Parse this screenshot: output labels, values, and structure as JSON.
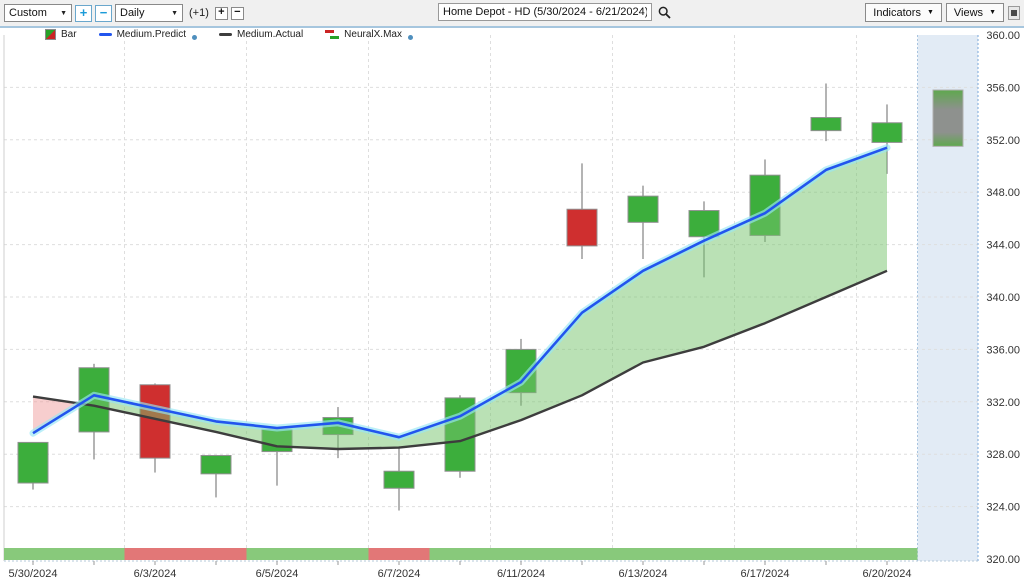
{
  "toolbar": {
    "range_select": "Custom",
    "period_select": "Daily",
    "zoom_in": "+",
    "zoom_out": "−",
    "offset_label": "(+1)",
    "bar_plus": "+",
    "bar_minus": "−",
    "symbol_title": "Home Depot - HD (5/30/2024 - 6/21/2024)",
    "indicators_button": "Indicators",
    "views_button": "Views"
  },
  "legend": {
    "items": [
      {
        "label": "Bar",
        "icon": "candle-bar-icon"
      },
      {
        "label": "Medium.Predict",
        "icon": "predict-line-icon",
        "has_dot": true
      },
      {
        "label": "Medium.Actual",
        "icon": "actual-line-icon"
      },
      {
        "label": "NeuralX.Max",
        "icon": "neuralx-icon",
        "has_dot": true
      }
    ]
  },
  "chart_data": {
    "type": "candlestick",
    "symbol": "Home Depot - HD",
    "date_range": "5/30/2024 - 6/21/2024",
    "y_axis": {
      "min": 320,
      "max": 360,
      "step": 4,
      "tick_labels": [
        "360.00",
        "356.00",
        "352.00",
        "348.00",
        "344.00",
        "340.00",
        "336.00",
        "332.00",
        "328.00",
        "324.00",
        "320.00"
      ]
    },
    "x_labels": [
      {
        "index": 0,
        "label": "5/30/2024"
      },
      {
        "index": 2,
        "label": "6/3/2024"
      },
      {
        "index": 4,
        "label": "6/5/2024"
      },
      {
        "index": 6,
        "label": "6/7/2024"
      },
      {
        "index": 8,
        "label": "6/11/2024"
      },
      {
        "index": 10,
        "label": "6/13/2024"
      },
      {
        "index": 12,
        "label": "6/17/2024"
      },
      {
        "index": 14,
        "label": "6/20/2024"
      }
    ],
    "candles": [
      {
        "open": 325.8,
        "high": 328.9,
        "low": 325.3,
        "close": 328.9,
        "dir": "up"
      },
      {
        "open": 329.7,
        "high": 334.9,
        "low": 327.6,
        "close": 334.6,
        "dir": "up"
      },
      {
        "open": 333.3,
        "high": 333.4,
        "low": 326.6,
        "close": 327.7,
        "dir": "down"
      },
      {
        "open": 326.5,
        "high": 327.9,
        "low": 324.7,
        "close": 327.9,
        "dir": "up"
      },
      {
        "open": 328.2,
        "high": 329.9,
        "low": 325.6,
        "close": 329.9,
        "dir": "up"
      },
      {
        "open": 329.5,
        "high": 331.6,
        "low": 327.7,
        "close": 330.8,
        "dir": "up"
      },
      {
        "open": 325.4,
        "high": 328.6,
        "low": 323.7,
        "close": 326.7,
        "dir": "up"
      },
      {
        "open": 326.7,
        "high": 332.5,
        "low": 326.2,
        "close": 332.3,
        "dir": "up"
      },
      {
        "open": 332.7,
        "high": 336.8,
        "low": 331.7,
        "close": 336.0,
        "dir": "up"
      },
      {
        "open": 346.7,
        "high": 350.2,
        "low": 342.9,
        "close": 343.9,
        "dir": "down"
      },
      {
        "open": 345.7,
        "high": 348.5,
        "low": 342.9,
        "close": 347.7,
        "dir": "up"
      },
      {
        "open": 344.6,
        "high": 347.3,
        "low": 341.5,
        "close": 346.6,
        "dir": "up"
      },
      {
        "open": 344.7,
        "high": 350.5,
        "low": 344.2,
        "close": 349.3,
        "dir": "up"
      },
      {
        "open": 352.7,
        "high": 356.3,
        "low": 351.9,
        "close": 353.7,
        "dir": "up"
      },
      {
        "open": 351.8,
        "high": 354.7,
        "low": 349.4,
        "close": 353.3,
        "dir": "up"
      }
    ],
    "series": [
      {
        "name": "Medium.Predict",
        "color": "#2255ee",
        "values": [
          329.6,
          332.5,
          331.5,
          330.5,
          330.0,
          330.4,
          329.3,
          330.9,
          333.5,
          338.8,
          342.0,
          344.3,
          346.4,
          349.7,
          351.4
        ]
      },
      {
        "name": "Medium.Actual",
        "color": "#3d3d3d",
        "values": [
          332.4,
          331.7,
          330.7,
          329.7,
          328.6,
          328.4,
          328.5,
          329.0,
          330.6,
          332.5,
          335.0,
          336.2,
          338.0,
          340.0,
          342.0
        ]
      }
    ],
    "forecast_bar": {
      "high": 355.8,
      "low": 351.5
    },
    "signal_strip": [
      {
        "from": 0,
        "to": 1,
        "signal": "up"
      },
      {
        "from": 2,
        "to": 3,
        "signal": "down"
      },
      {
        "from": 4,
        "to": 5,
        "signal": "up"
      },
      {
        "from": 6,
        "to": 6,
        "signal": "down"
      },
      {
        "from": 7,
        "to": 14,
        "signal": "up"
      }
    ],
    "colors": {
      "up": "#3cae3c",
      "down": "#cf2f2f",
      "wick": "#9b9b9b",
      "candle_border": "#909090",
      "strip_up": "#88c97b",
      "strip_down": "#e27777",
      "band_up": "rgba(118,196,108,0.50)",
      "band_down": "rgba(238,152,152,0.48)",
      "predict_glow": "rgba(150,230,245,0.65)",
      "forecast_column": "#e2ebf5",
      "forecast_gray": "#8e918e",
      "forecast_green": "#5fa84e",
      "grid": "#dedede",
      "axis_text": "#333333"
    },
    "legend_position": "top-left",
    "grid": true
  }
}
